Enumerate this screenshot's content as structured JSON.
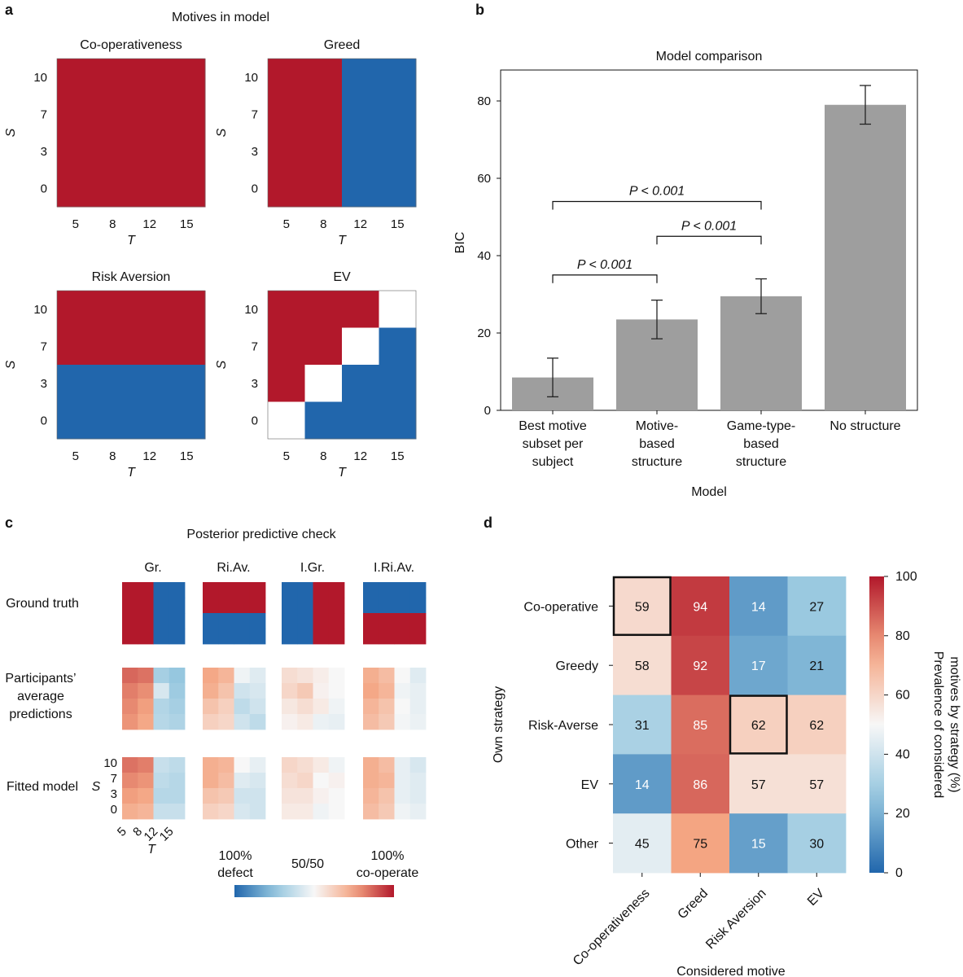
{
  "colors": {
    "coop": "#b2182b",
    "defect": "#2166ac",
    "none": "#ffffff",
    "bar": "#9e9e9e"
  },
  "panel_labels": {
    "a": "a",
    "b": "b",
    "c": "c",
    "d": "d"
  },
  "panel_a": {
    "title": "Motives in model",
    "t_ticks": [
      "5",
      "8",
      "12",
      "15"
    ],
    "s_ticks": [
      "10",
      "7",
      "3",
      "0"
    ],
    "x_label": "T",
    "y_label": "S",
    "maps": [
      {
        "title": "Co-operativeness",
        "grid": [
          [
            1,
            1,
            1,
            1
          ],
          [
            1,
            1,
            1,
            1
          ],
          [
            1,
            1,
            1,
            1
          ],
          [
            1,
            1,
            1,
            1
          ]
        ]
      },
      {
        "title": "Greed",
        "grid": [
          [
            1,
            1,
            -1,
            -1
          ],
          [
            1,
            1,
            -1,
            -1
          ],
          [
            1,
            1,
            -1,
            -1
          ],
          [
            1,
            1,
            -1,
            -1
          ]
        ]
      },
      {
        "title": "Risk Aversion",
        "grid": [
          [
            1,
            1,
            1,
            1
          ],
          [
            1,
            1,
            1,
            1
          ],
          [
            -1,
            -1,
            -1,
            -1
          ],
          [
            -1,
            -1,
            -1,
            -1
          ]
        ]
      },
      {
        "title": "EV",
        "grid": [
          [
            1,
            1,
            1,
            0
          ],
          [
            1,
            1,
            0,
            -1
          ],
          [
            1,
            0,
            -1,
            -1
          ],
          [
            0,
            -1,
            -1,
            -1
          ]
        ]
      }
    ]
  },
  "chart_data": [
    {
      "type": "bar",
      "title": "Model comparison",
      "xlabel": "Model",
      "ylabel": "BIC",
      "ylim": [
        0,
        88
      ],
      "yticks": [
        "0",
        "20",
        "40",
        "60",
        "80"
      ],
      "categories": [
        [
          "Best motive",
          "subset per",
          "subject"
        ],
        [
          "Motive-",
          "based",
          "structure"
        ],
        [
          "Game-type-",
          "based",
          "structure"
        ],
        [
          "No structure"
        ]
      ],
      "values": [
        8.5,
        23.5,
        29.5,
        79
      ],
      "errors": [
        5,
        5,
        4.5,
        5
      ],
      "significance": [
        {
          "from": 0,
          "to": 1,
          "level": 35,
          "text": "P < 0.001"
        },
        {
          "from": 1,
          "to": 2,
          "level": 45,
          "text": "P < 0.001"
        },
        {
          "from": 0,
          "to": 2,
          "level": 54,
          "text": "P < 0.001"
        }
      ]
    },
    {
      "type": "heatmap",
      "title": "Posterior predictive check",
      "columns": [
        "Gr.",
        "Ri.Av.",
        "I.Gr.",
        "I.Ri.Av."
      ],
      "rows": [
        [
          "Ground truth"
        ],
        [
          "Participants’",
          "average",
          "predictions"
        ],
        [
          "Fitted model"
        ]
      ],
      "s_ticks": [
        "10",
        "7",
        "3",
        "0"
      ],
      "t_ticks": [
        "5",
        "8",
        "12",
        "15"
      ],
      "x_label": "T",
      "y_label": "S",
      "grids": [
        [
          [
            [
              1,
              1,
              0,
              0
            ],
            [
              1,
              1,
              0,
              0
            ],
            [
              1,
              1,
              0,
              0
            ],
            [
              1,
              1,
              0,
              0
            ]
          ],
          [
            [
              1,
              1,
              1,
              1
            ],
            [
              1,
              1,
              1,
              1
            ],
            [
              0,
              0,
              0,
              0
            ],
            [
              0,
              0,
              0,
              0
            ]
          ],
          [
            [
              0,
              0,
              1,
              1
            ],
            [
              0,
              0,
              1,
              1
            ],
            [
              0,
              0,
              1,
              1
            ],
            [
              0,
              0,
              1,
              1
            ]
          ],
          [
            [
              0,
              0,
              0,
              0
            ],
            [
              0,
              0,
              0,
              0
            ],
            [
              1,
              1,
              1,
              1
            ],
            [
              1,
              1,
              1,
              1
            ]
          ]
        ],
        [
          [
            [
              0.86,
              0.84,
              0.3,
              0.26
            ],
            [
              0.82,
              0.79,
              0.42,
              0.28
            ],
            [
              0.8,
              0.76,
              0.33,
              0.3
            ],
            [
              0.78,
              0.74,
              0.34,
              0.32
            ]
          ],
          [
            [
              0.74,
              0.7,
              0.48,
              0.44
            ],
            [
              0.72,
              0.66,
              0.4,
              0.42
            ],
            [
              0.66,
              0.62,
              0.36,
              0.4
            ],
            [
              0.62,
              0.6,
              0.4,
              0.36
            ]
          ],
          [
            [
              0.58,
              0.56,
              0.53,
              0.5
            ],
            [
              0.6,
              0.64,
              0.52,
              0.5
            ],
            [
              0.55,
              0.58,
              0.54,
              0.48
            ],
            [
              0.52,
              0.54,
              0.47,
              0.46
            ]
          ],
          [
            [
              0.72,
              0.68,
              0.5,
              0.44
            ],
            [
              0.74,
              0.7,
              0.48,
              0.46
            ],
            [
              0.7,
              0.66,
              0.5,
              0.46
            ],
            [
              0.68,
              0.64,
              0.49,
              0.47
            ]
          ]
        ],
        [
          [
            [
              0.84,
              0.82,
              0.38,
              0.36
            ],
            [
              0.8,
              0.78,
              0.36,
              0.34
            ],
            [
              0.76,
              0.74,
              0.34,
              0.34
            ],
            [
              0.72,
              0.7,
              0.38,
              0.38
            ]
          ],
          [
            [
              0.72,
              0.7,
              0.5,
              0.46
            ],
            [
              0.72,
              0.68,
              0.44,
              0.42
            ],
            [
              0.66,
              0.64,
              0.4,
              0.4
            ],
            [
              0.62,
              0.6,
              0.42,
              0.4
            ]
          ],
          [
            [
              0.6,
              0.58,
              0.54,
              0.48
            ],
            [
              0.58,
              0.6,
              0.5,
              0.52
            ],
            [
              0.56,
              0.56,
              0.52,
              0.5
            ],
            [
              0.54,
              0.54,
              0.48,
              0.5
            ]
          ],
          [
            [
              0.72,
              0.68,
              0.46,
              0.42
            ],
            [
              0.72,
              0.7,
              0.46,
              0.44
            ],
            [
              0.7,
              0.66,
              0.46,
              0.44
            ],
            [
              0.68,
              0.64,
              0.48,
              0.46
            ]
          ]
        ]
      ],
      "colorbar": {
        "left": [
          "100%",
          "defect"
        ],
        "mid": "50/50",
        "right": [
          "100%",
          "co-operate"
        ]
      }
    },
    {
      "type": "heatmap",
      "xlabel": "Considered motive",
      "ylabel": "Own strategy",
      "columns": [
        "Co-operativeness",
        "Greed",
        "Risk Aversion",
        "EV"
      ],
      "rows": [
        "Co-operative",
        "Greedy",
        "Risk-Averse",
        "EV",
        "Other"
      ],
      "values": [
        [
          59,
          94,
          14,
          27
        ],
        [
          58,
          92,
          17,
          21
        ],
        [
          31,
          85,
          62,
          62
        ],
        [
          14,
          86,
          57,
          57
        ],
        [
          45,
          75,
          15,
          30
        ]
      ],
      "highlighted": [
        [
          0,
          0
        ],
        [
          2,
          2
        ]
      ],
      "colorbar": {
        "range": [
          0,
          100
        ],
        "ticks": [
          "0",
          "20",
          "40",
          "60",
          "80",
          "100"
        ],
        "label": [
          "Prevalence of considered",
          "motives by strategy (%)"
        ]
      }
    }
  ]
}
